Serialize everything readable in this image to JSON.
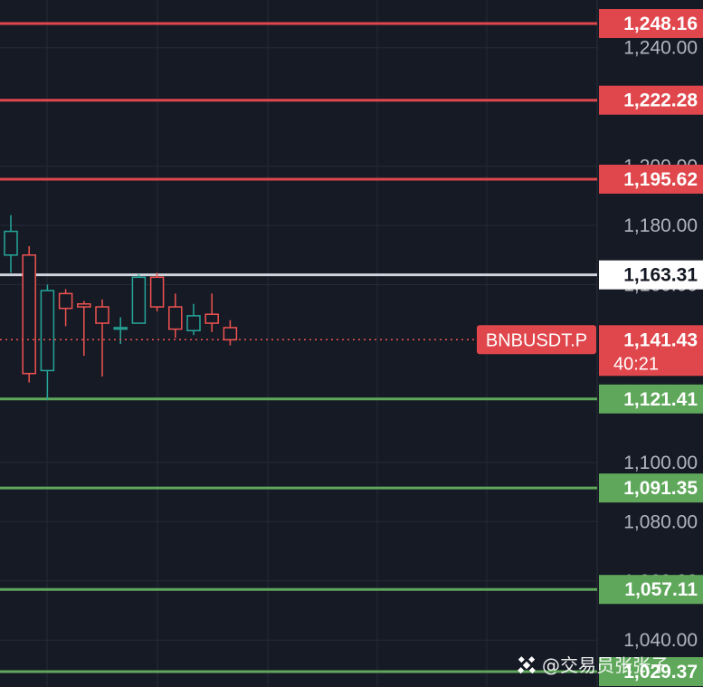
{
  "chart_data": {
    "type": "candlestick",
    "symbol": "BNBUSDT.P",
    "last_price": "1,141.43",
    "countdown": "40:21",
    "y_axis_ticks": [
      {
        "value": 1240,
        "label": "1,240.00"
      },
      {
        "value": 1200,
        "label": "1,200.00"
      },
      {
        "value": 1180,
        "label": "1,180.00"
      },
      {
        "value": 1160,
        "label": "1,160.00"
      },
      {
        "value": 1100,
        "label": "1,100.00"
      },
      {
        "value": 1080,
        "label": "1,080.00"
      },
      {
        "value": 1060,
        "label": "1,060.00"
      },
      {
        "value": 1040,
        "label": "1,040.00"
      }
    ],
    "horizontal_lines": [
      {
        "value": 1248.16,
        "label": "1,248.16",
        "color": "#e0474c"
      },
      {
        "value": 1222.28,
        "label": "1,222.28",
        "color": "#e0474c"
      },
      {
        "value": 1195.62,
        "label": "1,195.62",
        "color": "#e0474c"
      },
      {
        "value": 1163.31,
        "label": "1,163.31",
        "color": "#d1d4dc"
      },
      {
        "value": 1121.41,
        "label": "1,121.41",
        "color": "#5fa85b"
      },
      {
        "value": 1091.35,
        "label": "1,091.35",
        "color": "#5fa85b"
      },
      {
        "value": 1057.11,
        "label": "1,057.11",
        "color": "#5fa85b"
      },
      {
        "value": 1029.37,
        "label": "1,029.37",
        "color": "#5fa85b"
      }
    ],
    "candles": [
      {
        "open": 1170.0,
        "high": 1183.5,
        "low": 1164.0,
        "close": 1178.0
      },
      {
        "open": 1170.0,
        "high": 1173.0,
        "low": 1127.0,
        "close": 1130.0
      },
      {
        "open": 1131.0,
        "high": 1160.0,
        "low": 1121.0,
        "close": 1158.0
      },
      {
        "open": 1157.0,
        "high": 1158.5,
        "low": 1146.0,
        "close": 1152.0
      },
      {
        "open": 1153.5,
        "high": 1154.5,
        "low": 1136.0,
        "close": 1152.5
      },
      {
        "open": 1152.5,
        "high": 1155.0,
        "low": 1129.0,
        "close": 1147.0
      },
      {
        "open": 1145.0,
        "high": 1149.0,
        "low": 1140.0,
        "close": 1145.5
      },
      {
        "open": 1147.0,
        "high": 1163.5,
        "low": 1147.0,
        "close": 1162.5
      },
      {
        "open": 1162.5,
        "high": 1164.0,
        "low": 1151.0,
        "close": 1152.5
      },
      {
        "open": 1152.5,
        "high": 1157.0,
        "low": 1142.0,
        "close": 1145.0
      },
      {
        "open": 1144.5,
        "high": 1153.5,
        "low": 1143.0,
        "close": 1149.5
      },
      {
        "open": 1150.0,
        "high": 1157.0,
        "low": 1144.0,
        "close": 1147.0
      },
      {
        "open": 1145.5,
        "high": 1148.0,
        "low": 1139.5,
        "close": 1141.4
      }
    ],
    "ylim": [
      1026,
      1256
    ],
    "grid": true,
    "up_color": "#26a69a",
    "down_color": "#ef5350"
  },
  "watermark": {
    "text": "@交易员张张子",
    "icon": "binance-diamond-icon"
  }
}
